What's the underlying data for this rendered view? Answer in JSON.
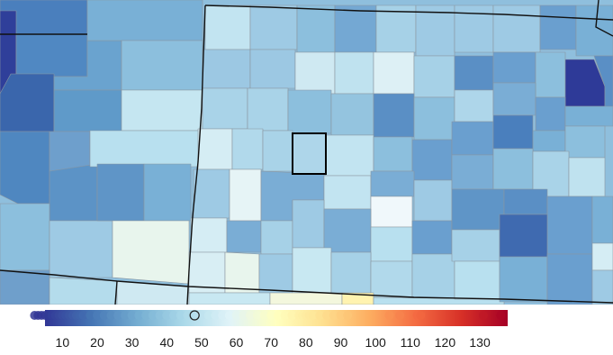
{
  "legend": {
    "min": 5,
    "max": 138,
    "ticks": [
      "10",
      "20",
      "30",
      "40",
      "50",
      "60",
      "70",
      "80",
      "90",
      "100",
      "110",
      "120",
      "130"
    ],
    "tick_values": [
      10,
      20,
      30,
      40,
      50,
      60,
      70,
      80,
      90,
      100,
      110,
      120,
      130
    ],
    "highlighted_value": 48,
    "distribution_values": [
      2,
      3,
      4,
      5,
      6,
      7,
      8,
      9,
      10,
      11,
      12,
      13,
      14,
      15,
      16,
      18,
      20,
      22,
      24,
      26,
      28,
      30,
      32,
      34,
      36,
      38,
      40,
      42,
      44,
      46,
      50,
      52,
      54,
      56,
      58,
      60,
      62,
      64,
      66,
      68,
      70,
      72,
      74,
      76,
      78,
      79,
      80,
      81,
      82,
      84,
      86,
      88,
      90,
      92,
      104,
      107,
      112,
      113,
      131,
      136
    ],
    "colors": [
      "#313695",
      "#4575b4",
      "#74add1",
      "#abd9e9",
      "#e0f3f8",
      "#ffffbf",
      "#fee090",
      "#fdae61",
      "#f46d43",
      "#d73027",
      "#a50026"
    ]
  },
  "map": {
    "selected_county_value": 48
  }
}
